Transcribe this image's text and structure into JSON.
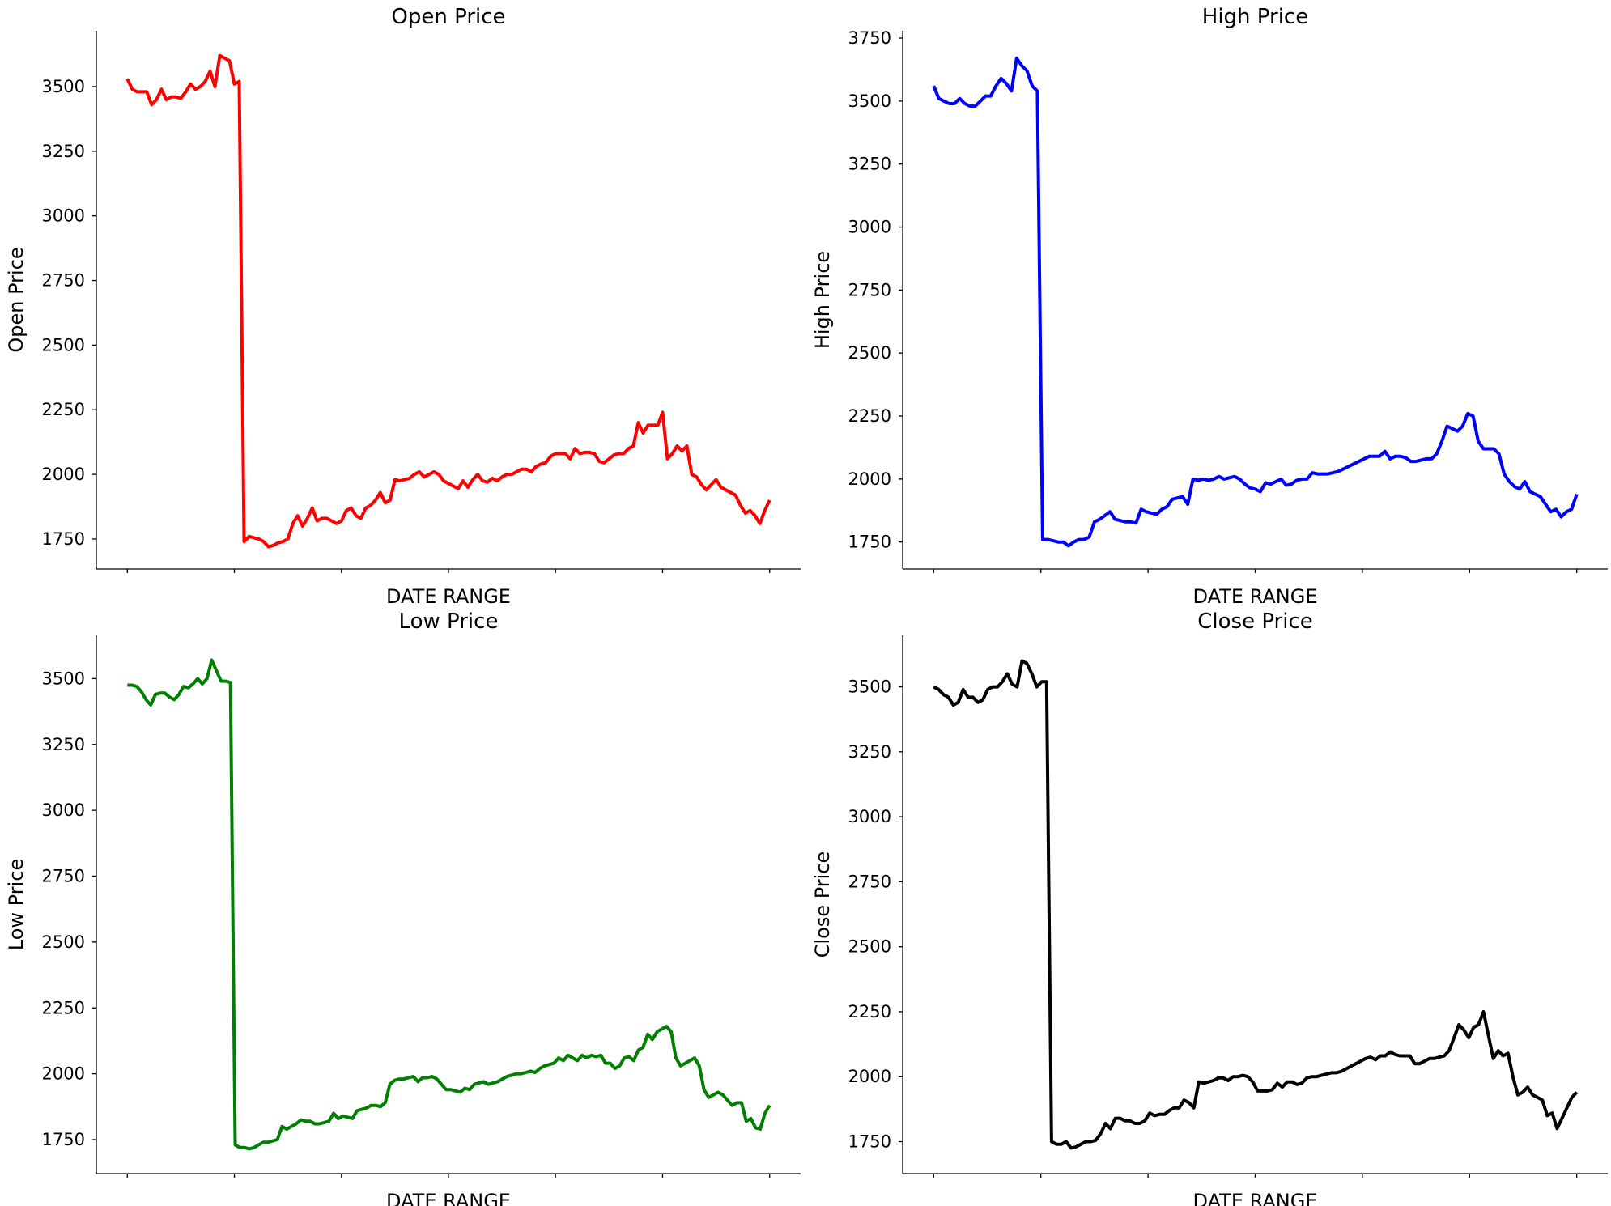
{
  "chart_data": [
    {
      "type": "line",
      "title": "Open Price",
      "xlabel": "DATE RANGE",
      "ylabel": "Open Price",
      "color": "#ff0000",
      "ylim": [
        1634,
        3716
      ],
      "yticks": [
        1750,
        2000,
        2250,
        2500,
        2750,
        3000,
        3250,
        3500
      ],
      "xtick_count": 7,
      "grid": false,
      "values": [
        3530,
        3490,
        3480,
        3480,
        3480,
        3430,
        3450,
        3490,
        3450,
        3460,
        3460,
        3455,
        3480,
        3510,
        3490,
        3500,
        3520,
        3560,
        3500,
        3620,
        3610,
        3600,
        3510,
        3520,
        1740,
        1760,
        1755,
        1750,
        1740,
        1720,
        1725,
        1735,
        1740,
        1750,
        1810,
        1840,
        1800,
        1830,
        1870,
        1820,
        1830,
        1830,
        1820,
        1810,
        1820,
        1860,
        1870,
        1840,
        1830,
        1870,
        1880,
        1900,
        1930,
        1890,
        1900,
        1980,
        1975,
        1980,
        1985,
        2000,
        2010,
        1990,
        2000,
        2010,
        2000,
        1975,
        1965,
        1955,
        1945,
        1975,
        1950,
        1980,
        2000,
        1975,
        1970,
        1985,
        1975,
        1990,
        2000,
        2000,
        2010,
        2020,
        2020,
        2010,
        2030,
        2040,
        2045,
        2070,
        2080,
        2080,
        2080,
        2060,
        2100,
        2080,
        2085,
        2085,
        2080,
        2050,
        2045,
        2060,
        2075,
        2080,
        2080,
        2100,
        2110,
        2200,
        2160,
        2190,
        2190,
        2190,
        2240,
        2060,
        2080,
        2110,
        2090,
        2110,
        2000,
        1990,
        1960,
        1940,
        1960,
        1980,
        1950,
        1940,
        1930,
        1920,
        1880,
        1850,
        1860,
        1840,
        1810,
        1860,
        1900
      ]
    },
    {
      "type": "line",
      "title": "High Price",
      "xlabel": "DATE RANGE",
      "ylabel": "High Price",
      "color": "#0000ff",
      "ylim": [
        1643,
        3779
      ],
      "yticks": [
        1750,
        2000,
        2250,
        2500,
        2750,
        3000,
        3250,
        3500,
        3750
      ],
      "xtick_count": 7,
      "grid": false,
      "values": [
        3560,
        3510,
        3500,
        3490,
        3490,
        3510,
        3490,
        3480,
        3480,
        3500,
        3520,
        3520,
        3560,
        3590,
        3570,
        3540,
        3670,
        3640,
        3620,
        3560,
        3540,
        1760,
        1760,
        1755,
        1750,
        1750,
        1735,
        1750,
        1760,
        1760,
        1770,
        1830,
        1840,
        1855,
        1870,
        1840,
        1835,
        1830,
        1830,
        1825,
        1880,
        1870,
        1865,
        1860,
        1880,
        1890,
        1920,
        1925,
        1930,
        1900,
        2000,
        1995,
        2000,
        1995,
        2000,
        2010,
        2000,
        2005,
        2010,
        2000,
        1980,
        1965,
        1960,
        1950,
        1985,
        1980,
        1990,
        2000,
        1975,
        1980,
        1995,
        2000,
        2000,
        2025,
        2020,
        2020,
        2020,
        2025,
        2030,
        2040,
        2050,
        2060,
        2070,
        2080,
        2090,
        2090,
        2090,
        2110,
        2080,
        2090,
        2090,
        2085,
        2070,
        2070,
        2075,
        2080,
        2080,
        2100,
        2150,
        2210,
        2200,
        2190,
        2210,
        2260,
        2250,
        2150,
        2120,
        2120,
        2120,
        2100,
        2020,
        1990,
        1970,
        1960,
        1990,
        1950,
        1940,
        1930,
        1900,
        1870,
        1880,
        1850,
        1870,
        1880,
        1940
      ]
    },
    {
      "type": "line",
      "title": "Low Price",
      "xlabel": "DATE RANGE",
      "ylabel": "Low Price",
      "color": "#008000",
      "ylim": [
        1621,
        3664
      ],
      "yticks": [
        1750,
        2000,
        2250,
        2500,
        2750,
        3000,
        3250,
        3500
      ],
      "xtick_count": 7,
      "grid": false,
      "values": [
        3475,
        3475,
        3470,
        3450,
        3420,
        3400,
        3440,
        3445,
        3445,
        3430,
        3420,
        3440,
        3470,
        3465,
        3480,
        3500,
        3480,
        3500,
        3570,
        3530,
        3490,
        3490,
        3485,
        1730,
        1720,
        1720,
        1715,
        1720,
        1730,
        1740,
        1740,
        1745,
        1750,
        1800,
        1790,
        1800,
        1810,
        1825,
        1820,
        1820,
        1810,
        1810,
        1815,
        1820,
        1850,
        1830,
        1840,
        1835,
        1830,
        1860,
        1865,
        1870,
        1880,
        1880,
        1875,
        1890,
        1960,
        1975,
        1980,
        1980,
        1985,
        1990,
        1970,
        1985,
        1985,
        1990,
        1980,
        1960,
        1940,
        1940,
        1935,
        1930,
        1945,
        1940,
        1960,
        1965,
        1970,
        1960,
        1965,
        1970,
        1980,
        1990,
        1995,
        2000,
        2000,
        2005,
        2010,
        2005,
        2020,
        2030,
        2035,
        2040,
        2060,
        2050,
        2070,
        2060,
        2050,
        2070,
        2060,
        2070,
        2065,
        2070,
        2040,
        2040,
        2020,
        2030,
        2060,
        2065,
        2050,
        2090,
        2100,
        2150,
        2130,
        2160,
        2170,
        2180,
        2160,
        2060,
        2030,
        2040,
        2050,
        2060,
        2030,
        1940,
        1910,
        1920,
        1930,
        1920,
        1900,
        1880,
        1890,
        1890,
        1820,
        1830,
        1795,
        1790,
        1850,
        1880
      ]
    },
    {
      "type": "line",
      "title": "Close Price",
      "xlabel": "DATE RANGE",
      "ylabel": "Close Price",
      "color": "#000000",
      "ylim": [
        1627,
        3698
      ],
      "yticks": [
        1750,
        2000,
        2250,
        2500,
        2750,
        3000,
        3250,
        3500
      ],
      "xtick_count": 7,
      "grid": false,
      "values": [
        3500,
        3490,
        3470,
        3460,
        3430,
        3440,
        3490,
        3460,
        3460,
        3440,
        3450,
        3490,
        3500,
        3500,
        3520,
        3550,
        3510,
        3500,
        3600,
        3590,
        3550,
        3500,
        3520,
        3520,
        1750,
        1740,
        1740,
        1750,
        1725,
        1730,
        1740,
        1750,
        1750,
        1755,
        1780,
        1820,
        1800,
        1840,
        1840,
        1830,
        1830,
        1820,
        1820,
        1830,
        1860,
        1850,
        1855,
        1855,
        1870,
        1880,
        1880,
        1910,
        1900,
        1880,
        1980,
        1975,
        1980,
        1985,
        1995,
        1995,
        1985,
        2000,
        2000,
        2005,
        2000,
        1980,
        1945,
        1945,
        1945,
        1950,
        1975,
        1960,
        1980,
        1980,
        1970,
        1975,
        1995,
        2000,
        2000,
        2005,
        2010,
        2015,
        2015,
        2020,
        2030,
        2040,
        2050,
        2060,
        2070,
        2075,
        2065,
        2080,
        2080,
        2095,
        2085,
        2080,
        2080,
        2080,
        2050,
        2050,
        2060,
        2070,
        2070,
        2075,
        2080,
        2100,
        2150,
        2200,
        2180,
        2150,
        2190,
        2200,
        2250,
        2160,
        2070,
        2100,
        2080,
        2090,
        2000,
        1930,
        1940,
        1960,
        1930,
        1920,
        1910,
        1850,
        1860,
        1800,
        1840,
        1880,
        1920,
        1940
      ]
    }
  ]
}
